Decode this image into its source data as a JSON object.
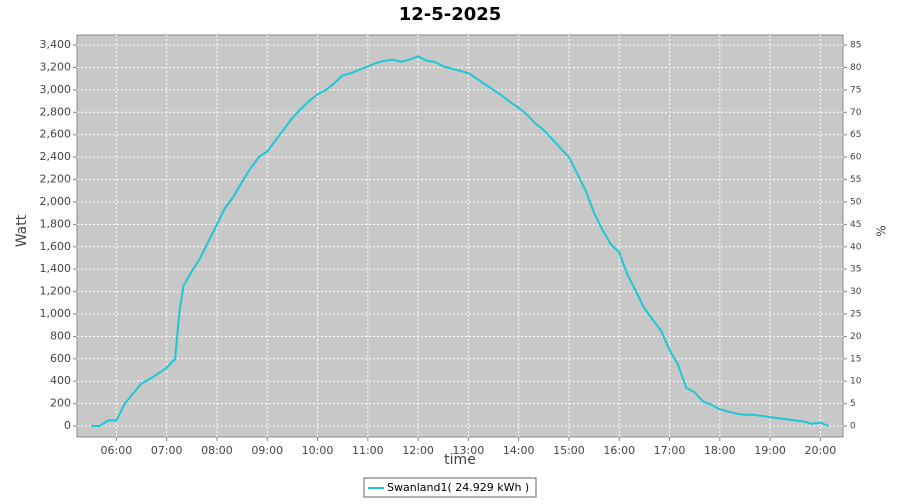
{
  "chart_data": {
    "type": "line",
    "title": "12-5-2025",
    "x_label": "time",
    "y_label": "Watt",
    "y2_label": "%",
    "x": [
      "05:30",
      "05:40",
      "05:50",
      "06:00",
      "06:10",
      "06:20",
      "06:30",
      "06:40",
      "06:50",
      "07:00",
      "07:10",
      "07:15",
      "07:20",
      "07:30",
      "07:40",
      "07:50",
      "08:00",
      "08:10",
      "08:20",
      "08:30",
      "08:40",
      "08:50",
      "09:00",
      "09:10",
      "09:20",
      "09:30",
      "09:40",
      "09:50",
      "10:00",
      "10:10",
      "10:20",
      "10:30",
      "10:40",
      "10:50",
      "11:00",
      "11:10",
      "11:20",
      "11:30",
      "11:40",
      "11:50",
      "12:00",
      "12:10",
      "12:20",
      "12:30",
      "12:40",
      "12:50",
      "13:00",
      "13:10",
      "13:20",
      "13:30",
      "13:40",
      "13:50",
      "14:00",
      "14:10",
      "14:20",
      "14:30",
      "14:40",
      "14:50",
      "15:00",
      "15:10",
      "15:20",
      "15:30",
      "15:40",
      "15:50",
      "16:00",
      "16:10",
      "16:20",
      "16:30",
      "16:40",
      "16:50",
      "17:00",
      "17:10",
      "17:20",
      "17:30",
      "17:40",
      "17:50",
      "18:00",
      "18:10",
      "18:20",
      "18:30",
      "18:40",
      "18:50",
      "19:00",
      "19:10",
      "19:20",
      "19:30",
      "19:40",
      "19:50",
      "20:00",
      "20:10"
    ],
    "series": [
      {
        "name": "Swanland1( 24.929 kWh )",
        "color": "#1cc8d4",
        "values": [
          0,
          0,
          50,
          50,
          200,
          290,
          380,
          420,
          470,
          520,
          600,
          1000,
          1250,
          1380,
          1500,
          1650,
          1800,
          1950,
          2050,
          2180,
          2300,
          2400,
          2450,
          2550,
          2650,
          2750,
          2830,
          2900,
          2960,
          3000,
          3060,
          3130,
          3150,
          3180,
          3210,
          3240,
          3260,
          3270,
          3250,
          3270,
          3300,
          3260,
          3250,
          3210,
          3190,
          3170,
          3150,
          3100,
          3050,
          3000,
          2950,
          2890,
          2840,
          2780,
          2700,
          2640,
          2560,
          2480,
          2400,
          2250,
          2100,
          1900,
          1750,
          1620,
          1550,
          1350,
          1200,
          1050,
          950,
          850,
          680,
          550,
          340,
          300,
          220,
          190,
          150,
          130,
          110,
          100,
          100,
          90,
          80,
          70,
          60,
          50,
          40,
          20,
          30,
          0
        ]
      }
    ],
    "xlim": [
      "05:13",
      "20:27"
    ],
    "xticks": [
      "06:00",
      "07:00",
      "08:00",
      "09:00",
      "10:00",
      "11:00",
      "12:00",
      "13:00",
      "14:00",
      "15:00",
      "16:00",
      "17:00",
      "18:00",
      "19:00",
      "20:00"
    ],
    "ylim": [
      -98,
      3490
    ],
    "yticks": [
      0,
      200,
      400,
      600,
      800,
      {
        "value": 1000,
        "label": "1,000"
      },
      {
        "value": 1200,
        "label": "1,200"
      },
      {
        "value": 1400,
        "label": "1,400"
      },
      {
        "value": 1600,
        "label": "1,600"
      },
      {
        "value": 1800,
        "label": "1,800"
      },
      {
        "value": 2000,
        "label": "2,000"
      },
      {
        "value": 2200,
        "label": "2,200"
      },
      {
        "value": 2400,
        "label": "2,400"
      },
      {
        "value": 2600,
        "label": "2,600"
      },
      {
        "value": 2800,
        "label": "2,800"
      },
      {
        "value": 3000,
        "label": "3,000"
      },
      {
        "value": 3200,
        "label": "3,200"
      },
      {
        "value": 3400,
        "label": "3,400"
      }
    ],
    "y2lim": [
      -2.45,
      87.25
    ],
    "y2ticks": [
      0,
      5,
      10,
      15,
      20,
      25,
      30,
      35,
      40,
      45,
      50,
      55,
      60,
      65,
      70,
      75,
      80,
      85
    ],
    "grid": true,
    "legend": "bottom"
  }
}
